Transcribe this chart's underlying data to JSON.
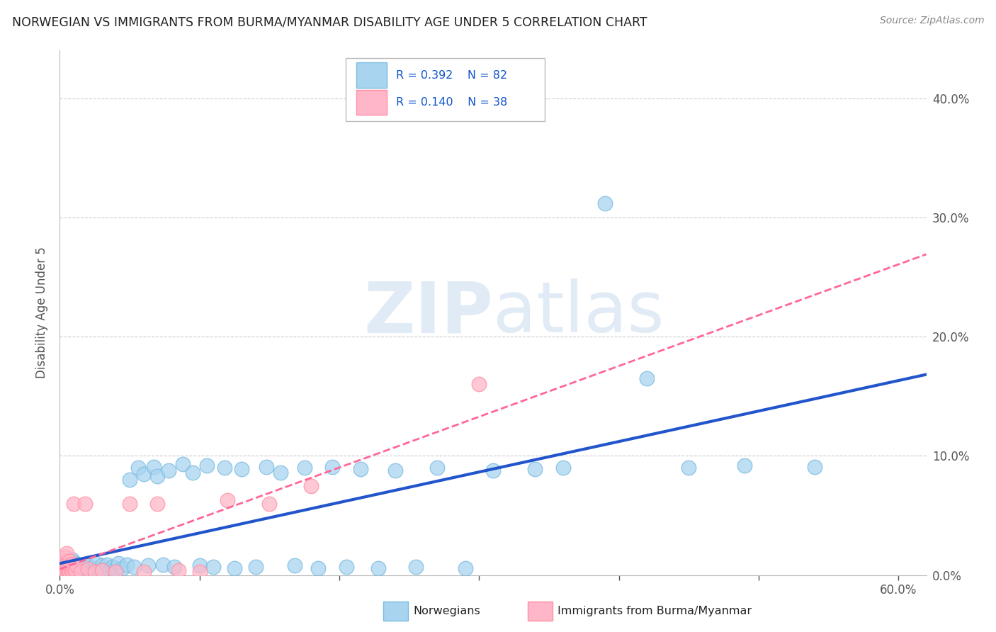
{
  "title": "NORWEGIAN VS IMMIGRANTS FROM BURMA/MYANMAR DISABILITY AGE UNDER 5 CORRELATION CHART",
  "source": "Source: ZipAtlas.com",
  "ylabel": "Disability Age Under 5",
  "xlim": [
    0.0,
    0.62
  ],
  "ylim": [
    0.0,
    0.44
  ],
  "yticks": [
    0.0,
    0.1,
    0.2,
    0.3,
    0.4
  ],
  "norwegian_R": 0.392,
  "norwegian_N": 82,
  "immigrant_R": 0.14,
  "immigrant_N": 38,
  "norwegian_color": "#A8D4F0",
  "norwegian_edge_color": "#7ABBE0",
  "immigrant_color": "#FFB6C8",
  "immigrant_edge_color": "#FF8FA3",
  "norwegian_line_color": "#2255CC",
  "immigrant_line_color": "#FF6699",
  "background_color": "#FFFFFF",
  "grid_color": "#CCCCCC",
  "title_color": "#222222",
  "axis_label_color": "#555555",
  "tick_color": "#555555",
  "legend_text_color": "#222222",
  "legend_R_color": "#1155CC",
  "legend_N_color": "#CC0066",
  "watermark_color": "#C5D8EC",
  "source_color": "#888888",
  "nor_x": [
    0.003,
    0.004,
    0.005,
    0.006,
    0.007,
    0.007,
    0.008,
    0.008,
    0.009,
    0.009,
    0.01,
    0.01,
    0.011,
    0.011,
    0.012,
    0.012,
    0.013,
    0.013,
    0.014,
    0.015,
    0.015,
    0.016,
    0.017,
    0.018,
    0.019,
    0.02,
    0.02,
    0.021,
    0.022,
    0.023,
    0.025,
    0.026,
    0.028,
    0.03,
    0.032,
    0.034,
    0.036,
    0.038,
    0.04,
    0.042,
    0.045,
    0.048,
    0.05,
    0.053,
    0.056,
    0.06,
    0.063,
    0.067,
    0.07,
    0.074,
    0.078,
    0.082,
    0.088,
    0.095,
    0.1,
    0.105,
    0.11,
    0.118,
    0.125,
    0.13,
    0.14,
    0.148,
    0.158,
    0.168,
    0.175,
    0.185,
    0.195,
    0.205,
    0.215,
    0.228,
    0.24,
    0.255,
    0.27,
    0.29,
    0.31,
    0.34,
    0.36,
    0.39,
    0.42,
    0.45,
    0.49,
    0.54
  ],
  "nor_y": [
    0.005,
    0.01,
    0.005,
    0.012,
    0.003,
    0.008,
    0.004,
    0.01,
    0.005,
    0.013,
    0.003,
    0.008,
    0.004,
    0.01,
    0.003,
    0.007,
    0.004,
    0.009,
    0.005,
    0.003,
    0.007,
    0.004,
    0.006,
    0.003,
    0.008,
    0.004,
    0.009,
    0.003,
    0.006,
    0.004,
    0.005,
    0.01,
    0.004,
    0.008,
    0.005,
    0.009,
    0.004,
    0.007,
    0.005,
    0.01,
    0.006,
    0.009,
    0.08,
    0.007,
    0.09,
    0.085,
    0.008,
    0.091,
    0.083,
    0.009,
    0.088,
    0.007,
    0.093,
    0.086,
    0.008,
    0.092,
    0.007,
    0.09,
    0.006,
    0.089,
    0.007,
    0.091,
    0.086,
    0.008,
    0.09,
    0.006,
    0.091,
    0.007,
    0.089,
    0.006,
    0.088,
    0.007,
    0.09,
    0.006,
    0.088,
    0.089,
    0.09,
    0.312,
    0.165,
    0.09,
    0.092,
    0.091
  ],
  "imm_x": [
    0.002,
    0.002,
    0.003,
    0.003,
    0.003,
    0.004,
    0.004,
    0.004,
    0.005,
    0.005,
    0.005,
    0.005,
    0.006,
    0.006,
    0.007,
    0.007,
    0.008,
    0.008,
    0.009,
    0.01,
    0.01,
    0.011,
    0.012,
    0.015,
    0.018,
    0.02,
    0.025,
    0.03,
    0.04,
    0.05,
    0.06,
    0.07,
    0.085,
    0.1,
    0.12,
    0.15,
    0.18,
    0.3
  ],
  "imm_y": [
    0.005,
    0.01,
    0.003,
    0.007,
    0.012,
    0.004,
    0.008,
    0.015,
    0.003,
    0.006,
    0.01,
    0.018,
    0.004,
    0.008,
    0.003,
    0.012,
    0.005,
    0.009,
    0.003,
    0.006,
    0.06,
    0.004,
    0.008,
    0.003,
    0.06,
    0.005,
    0.003,
    0.004,
    0.003,
    0.06,
    0.003,
    0.06,
    0.004,
    0.003,
    0.063,
    0.06,
    0.075,
    0.16
  ]
}
